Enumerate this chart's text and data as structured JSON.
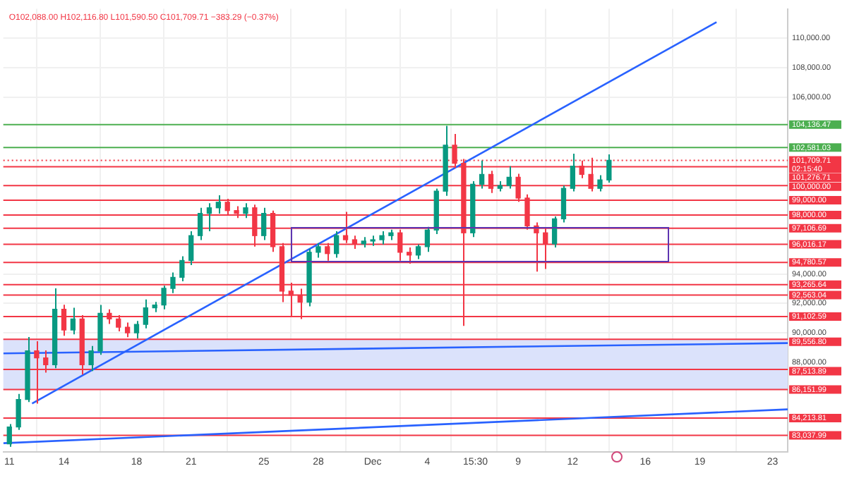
{
  "chart_data": {
    "type": "candlestick",
    "subtitle": "O102,088.00 H102,116.80 L101,590.50 C101,709.71 −383.29 (−0.37%)",
    "xlim": [
      "--11-10T16:00",
      "--12-23T20:00"
    ],
    "xticks": [
      {
        "value": "--11-11T00:00",
        "label": "11"
      },
      {
        "value": "--11-14T00:00",
        "label": "14"
      },
      {
        "value": "--11-18T00:00",
        "label": "18"
      },
      {
        "value": "--11-21T00:00",
        "label": "21"
      },
      {
        "value": "--11-25T00:00",
        "label": "25"
      },
      {
        "value": "--11-28T00:00",
        "label": "28"
      },
      {
        "value": "--12-01T00:00",
        "label": "Dec"
      },
      {
        "value": "--12-04T00:00",
        "label": "4"
      },
      {
        "value": "--12-06T15:30",
        "label": "15:30"
      },
      {
        "value": "--12-09T00:00",
        "label": "9"
      },
      {
        "value": "--12-12T00:00",
        "label": "12"
      },
      {
        "value": "--12-16T00:00",
        "label": "16"
      },
      {
        "value": "--12-19T00:00",
        "label": "19"
      },
      {
        "value": "--12-23T00:00",
        "label": "23"
      }
    ],
    "ylim": [
      81900,
      112000
    ],
    "yticks": [
      {
        "value": 88000,
        "label": "88,000.00"
      },
      {
        "value": 90000,
        "label": "90,000.00"
      },
      {
        "value": 92000,
        "label": "92,000.00"
      },
      {
        "value": 94000,
        "label": "94,000.00"
      },
      {
        "value": 106000,
        "label": "106,000.00"
      },
      {
        "value": 108000,
        "label": "108,000.00"
      },
      {
        "value": 110000,
        "label": "110,000.00"
      }
    ],
    "grid": true,
    "series": [
      {
        "x": [
          "--11-11T00:00",
          "--11-11T12:00",
          "--11-12T00:00",
          "--11-12T12:00",
          "--11-13T00:00",
          "--11-13T12:00",
          "--11-14T00:00",
          "--11-14T12:00",
          "--11-15T00:00",
          "--11-15T12:00",
          "--11-16T00:00",
          "--11-16T12:00",
          "--11-17T00:00",
          "--11-17T12:00",
          "--11-18T00:00",
          "--11-18T12:00",
          "--11-19T00:00",
          "--11-19T12:00",
          "--11-20T00:00",
          "--11-20T12:00",
          "--11-21T00:00",
          "--11-21T12:00",
          "--11-22T00:00",
          "--11-22T12:00",
          "--11-23T00:00",
          "--11-23T12:00",
          "--11-24T00:00",
          "--11-24T12:00",
          "--11-25T00:00",
          "--11-25T12:00",
          "--11-26T00:00",
          "--11-26T12:00",
          "--11-27T00:00",
          "--11-27T12:00",
          "--11-28T00:00",
          "--11-28T12:00",
          "--11-29T00:00",
          "--11-29T12:00",
          "--11-30T00:00",
          "--11-30T12:00",
          "--12-01T00:00",
          "--12-01T12:00",
          "--12-02T00:00",
          "--12-02T12:00",
          "--12-03T00:00",
          "--12-03T12:00",
          "--12-04T00:00",
          "--12-04T12:00",
          "--12-05T00:00",
          "--12-05T12:00",
          "--12-06T00:00",
          "--12-06T12:00",
          "--12-07T00:00",
          "--12-07T12:00",
          "--12-08T00:00",
          "--12-08T12:00",
          "--12-09T00:00",
          "--12-09T12:00",
          "--12-10T00:00",
          "--12-10T12:00",
          "--12-11T00:00",
          "--12-11T12:00",
          "--12-12T00:00",
          "--12-12T12:00",
          "--12-13T00:00",
          "--12-13T12:00",
          "--12-14T00:00"
        ],
        "ohlc": [
          [
            82450,
            83800,
            82260,
            83600
          ],
          [
            83600,
            85850,
            83400,
            85470
          ],
          [
            85470,
            89720,
            85300,
            88770
          ],
          [
            88770,
            89430,
            85190,
            88300
          ],
          [
            88300,
            88800,
            87300,
            87830
          ],
          [
            87830,
            93020,
            87600,
            91600
          ],
          [
            91600,
            91900,
            89800,
            90190
          ],
          [
            90190,
            91700,
            89900,
            90940
          ],
          [
            90940,
            91200,
            87170,
            87830
          ],
          [
            87830,
            89100,
            87400,
            88770
          ],
          [
            88770,
            91890,
            88500,
            91320
          ],
          [
            91320,
            91600,
            90600,
            90940
          ],
          [
            90940,
            91200,
            90100,
            90380
          ],
          [
            90380,
            90700,
            89700,
            90000
          ],
          [
            90000,
            90800,
            89620,
            90570
          ],
          [
            90570,
            92260,
            90300,
            91700
          ],
          [
            91700,
            92100,
            91400,
            91890
          ],
          [
            91890,
            93200,
            91600,
            93020
          ],
          [
            93020,
            94100,
            92700,
            93770
          ],
          [
            93770,
            95200,
            93500,
            94910
          ],
          [
            94910,
            96900,
            94600,
            96600
          ],
          [
            96600,
            98490,
            96300,
            98110
          ],
          [
            98110,
            98800,
            96900,
            98490
          ],
          [
            98490,
            99340,
            98100,
            98870
          ],
          [
            98870,
            99100,
            98000,
            98300
          ],
          [
            98300,
            98600,
            97800,
            98110
          ],
          [
            98110,
            98800,
            97800,
            98490
          ],
          [
            98490,
            98700,
            95850,
            96600
          ],
          [
            96600,
            98490,
            96300,
            98110
          ],
          [
            98110,
            98300,
            95500,
            95850
          ],
          [
            95850,
            96100,
            92080,
            92830
          ],
          [
            92830,
            93400,
            91130,
            92550
          ],
          [
            92550,
            93000,
            90940,
            92080
          ],
          [
            92080,
            95700,
            91800,
            95470
          ],
          [
            95470,
            96100,
            95100,
            95850
          ],
          [
            95850,
            96100,
            94900,
            95380
          ],
          [
            95380,
            96900,
            95100,
            96600
          ],
          [
            96600,
            98210,
            96100,
            96320
          ],
          [
            96320,
            96600,
            95700,
            96040
          ],
          [
            96040,
            96500,
            95800,
            96230
          ],
          [
            96230,
            96600,
            95900,
            96320
          ],
          [
            96320,
            96900,
            96000,
            96600
          ],
          [
            96600,
            97000,
            96300,
            96790
          ],
          [
            96790,
            97000,
            94900,
            95470
          ],
          [
            95470,
            95800,
            94700,
            95280
          ],
          [
            95280,
            96000,
            95000,
            95850
          ],
          [
            95850,
            97200,
            95500,
            96980
          ],
          [
            96980,
            99800,
            96700,
            99620
          ],
          [
            99620,
            104060,
            99300,
            102740
          ],
          [
            102740,
            103500,
            101200,
            101510
          ],
          [
            101510,
            101800,
            90470,
            96790
          ],
          [
            96790,
            100300,
            96500,
            100090
          ],
          [
            100090,
            101700,
            99800,
            100760
          ],
          [
            100760,
            101000,
            99500,
            99810
          ],
          [
            99810,
            100300,
            99600,
            100000
          ],
          [
            100000,
            101320,
            99800,
            100570
          ],
          [
            100570,
            100800,
            98900,
            99150
          ],
          [
            99150,
            99400,
            97000,
            97260
          ],
          [
            97260,
            97500,
            94150,
            96790
          ],
          [
            96790,
            97100,
            94340,
            96040
          ],
          [
            96040,
            97900,
            95800,
            97740
          ],
          [
            97740,
            100000,
            97500,
            99810
          ],
          [
            99810,
            102170,
            99600,
            101320
          ],
          [
            101320,
            101700,
            100500,
            100760
          ],
          [
            100760,
            101890,
            99600,
            99810
          ],
          [
            99810,
            100700,
            99600,
            100380
          ],
          [
            100380,
            102116.8,
            100200,
            101709.71
          ]
        ],
        "colors": [
          "#089981",
          "#089981",
          "#089981",
          "#f23645",
          "#f23645",
          "#089981",
          "#f23645",
          "#089981",
          "#f23645",
          "#089981",
          "#089981",
          "#f23645",
          "#f23645",
          "#f23645",
          "#089981",
          "#089981",
          "#089981",
          "#089981",
          "#089981",
          "#089981",
          "#089981",
          "#089981",
          "#089981",
          "#089981",
          "#f23645",
          "#f23645",
          "#089981",
          "#f23645",
          "#089981",
          "#f23645",
          "#f23645",
          "#f23645",
          "#f23645",
          "#089981",
          "#089981",
          "#f23645",
          "#089981",
          "#f23645",
          "#f23645",
          "#089981",
          "#089981",
          "#089981",
          "#089981",
          "#f23645",
          "#f23645",
          "#089981",
          "#089981",
          "#089981",
          "#089981",
          "#f23645",
          "#f23645",
          "#089981",
          "#089981",
          "#f23645",
          "#089981",
          "#089981",
          "#f23645",
          "#f23645",
          "#f23645",
          "#f23645",
          "#089981",
          "#089981",
          "#089981",
          "#f23645",
          "#f23645",
          "#089981",
          "#089981"
        ]
      },
      {
        "type": "line",
        "color": "#2962ff",
        "x": [
          "--11-12T06:00",
          "--12-19T22:00"
        ],
        "values": [
          85200,
          111100
        ]
      },
      {
        "type": "line",
        "color": "#2962ff",
        "x": [
          "--11-10T16:00",
          "--12-23T20:00"
        ],
        "values": [
          82500,
          84800
        ]
      },
      {
        "type": "line",
        "color": "#2962ff",
        "x": [
          "--11-10T16:00",
          "--12-23T20:00"
        ],
        "values": [
          88600,
          89300
        ]
      }
    ],
    "bands": [
      {
        "axis": "y",
        "from": 86151.99,
        "to": 89556.8,
        "color": "#dbe2fb"
      }
    ],
    "ref_lines": [
      {
        "axis": "y",
        "value": 104136.47,
        "label": "104,136.47",
        "color": "#4caf50"
      },
      {
        "axis": "y",
        "value": 102581.03,
        "label": "102,581.03",
        "color": "#4caf50"
      },
      {
        "axis": "y",
        "value": 101709.71,
        "label": "101,709.71\n02:15:40",
        "color": "#f23645",
        "line_style": "dotted"
      },
      {
        "axis": "y",
        "value": 101276.71,
        "label": "101,276.71",
        "color": "#f23645"
      },
      {
        "axis": "y",
        "value": 100000,
        "label": "100,000.00",
        "color": "#f23645"
      },
      {
        "axis": "y",
        "value": 99000,
        "label": "99,000.00",
        "color": "#f23645"
      },
      {
        "axis": "y",
        "value": 98000,
        "label": "98,000.00",
        "color": "#f23645"
      },
      {
        "axis": "y",
        "value": 97106.69,
        "label": "97,106.69",
        "color": "#f23645"
      },
      {
        "axis": "y",
        "value": 96016.17,
        "label": "96,016.17",
        "color": "#f23645"
      },
      {
        "axis": "y",
        "value": 94780.57,
        "label": "94,780.57",
        "color": "#f23645"
      },
      {
        "axis": "y",
        "value": 93265.64,
        "label": "93,265.64",
        "color": "#f23645"
      },
      {
        "axis": "y",
        "value": 92563.04,
        "label": "92,563.04",
        "color": "#f23645"
      },
      {
        "axis": "y",
        "value": 91102.59,
        "label": "91,102.59",
        "color": "#f23645"
      },
      {
        "axis": "y",
        "value": 89556.8,
        "label": "89,556.80",
        "color": "#f23645"
      },
      {
        "axis": "y",
        "value": 87513.89,
        "label": "87,513.89",
        "color": "#f23645"
      },
      {
        "axis": "y",
        "value": 86151.99,
        "label": "86,151.99",
        "color": "#f23645"
      },
      {
        "axis": "y",
        "value": 84213.81,
        "label": "84,213.81",
        "color": "#f23645"
      },
      {
        "axis": "y",
        "value": 83037.99,
        "label": "83,037.99",
        "color": "#f23645"
      }
    ]
  }
}
